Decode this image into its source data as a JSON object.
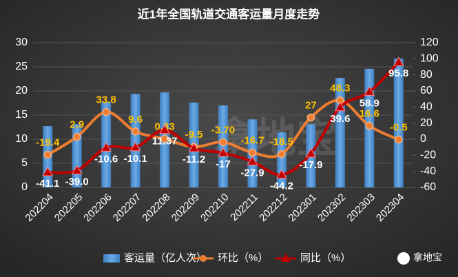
{
  "chart_data": {
    "type": "bar-line",
    "title": "近1年全国轨道交通客运量月度走势",
    "categories": [
      "202204",
      "202205",
      "202206",
      "202207",
      "202208",
      "202209",
      "202210",
      "202211",
      "202212",
      "202301",
      "202302",
      "202303",
      "202304"
    ],
    "series": [
      {
        "name": "客运量（亿人次）",
        "type": "bar",
        "color": "#5b9bd5",
        "axis": "y",
        "values": [
          12.7,
          13.1,
          17.7,
          19.4,
          19.7,
          17.6,
          17.0,
          14.1,
          11.4,
          13.1,
          22.7,
          24.6,
          26.7
        ]
      },
      {
        "name": "环比（%）",
        "type": "line",
        "color": "#ed7d31",
        "marker": "circle",
        "label_color": "#ffc000",
        "axis": "y2",
        "values": [
          -19.4,
          2.9,
          33.8,
          9.6,
          0.33,
          -9.5,
          -3.7,
          -16.7,
          -18.5,
          27,
          48.3,
          16.6,
          -0.5
        ],
        "value_labels": [
          "-19.4",
          "2.9",
          "33.8",
          "9.6",
          "0.33",
          "-9.5",
          "-3.70",
          "-16.7",
          "-18.5",
          "27",
          "48.3",
          "16.6",
          "-0.5"
        ]
      },
      {
        "name": "同比（%）",
        "type": "line",
        "color": "#c00000",
        "marker": "triangle",
        "label_color": "#ffffff",
        "axis": "y2",
        "values": [
          -41.1,
          -39,
          -10.6,
          -10.1,
          11.37,
          -11.2,
          -17,
          -27.9,
          -44.2,
          -17.9,
          39.6,
          58.9,
          95.8
        ],
        "value_labels": [
          "-41.1",
          "-39.0",
          "-10.6",
          "-10.1",
          "11.37",
          "-11.2",
          "-17",
          "-27.9",
          "-44.2",
          "-17.9",
          "39.6",
          "58.9",
          "95.8"
        ]
      }
    ],
    "ylim": [
      0,
      30
    ],
    "yticks": [
      0,
      5,
      10,
      15,
      20,
      25,
      30
    ],
    "y2lim": [
      -60,
      120
    ],
    "y2ticks": [
      -60,
      -40,
      -20,
      0,
      20,
      40,
      60,
      80,
      100,
      120
    ],
    "legend": "bottom",
    "watermark": "拿地宝",
    "brand": "拿地宝"
  }
}
